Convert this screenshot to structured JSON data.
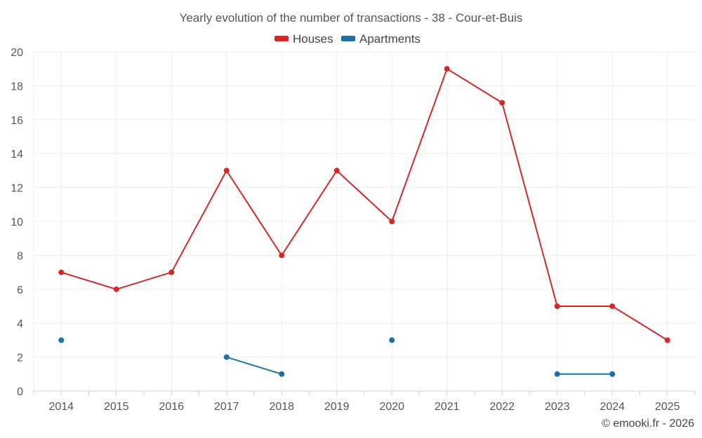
{
  "chart_data": {
    "type": "line",
    "title": "Yearly evolution of the number of transactions - 38 - Cour-et-Buis",
    "xlabel": "",
    "ylabel": "",
    "categories": [
      "2014",
      "2015",
      "2016",
      "2017",
      "2018",
      "2019",
      "2020",
      "2021",
      "2022",
      "2023",
      "2024",
      "2025"
    ],
    "ylim": [
      0,
      20
    ],
    "yticks": [
      0,
      2,
      4,
      6,
      8,
      10,
      12,
      14,
      16,
      18,
      20
    ],
    "grid": true,
    "legend_position": "top-center",
    "series": [
      {
        "name": "Houses",
        "color": "#d62728",
        "values": [
          7,
          6,
          7,
          13,
          8,
          13,
          10,
          19,
          17,
          5,
          5,
          3
        ]
      },
      {
        "name": "Apartments",
        "color": "#1f6fa3",
        "values": [
          3,
          null,
          null,
          2,
          1,
          null,
          3,
          null,
          null,
          1,
          1,
          null
        ]
      }
    ],
    "credit": "© emooki.fr - 2026"
  }
}
